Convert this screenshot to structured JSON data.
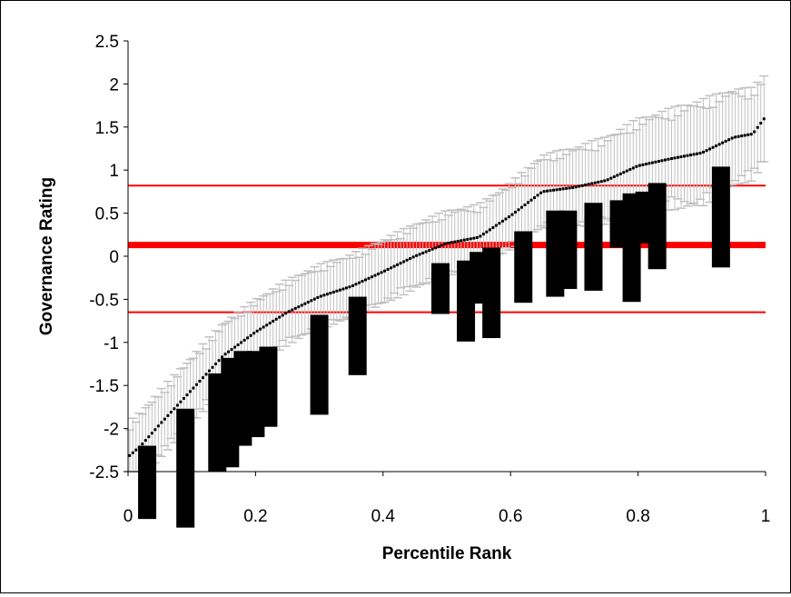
{
  "chart_data": {
    "type": "scatter",
    "title": "",
    "xlabel": "Percentile Rank",
    "ylabel": "Governance Rating",
    "xlim": [
      0,
      1
    ],
    "ylim": [
      -2.5,
      2.5
    ],
    "x_ticks": [
      "0",
      "0.2",
      "0.4",
      "0.6",
      "0.8",
      "1"
    ],
    "y_ticks": [
      "-2.5",
      "-2",
      "-1.5",
      "-1",
      "-0.5",
      "0",
      "0.5",
      "1",
      "1.5",
      "2",
      "2.5"
    ],
    "grid": false,
    "legend": "none",
    "colors": {
      "points": "#000000",
      "error_bars": "#c0c0c0",
      "reference_lines": "#ff0000",
      "bars": "#000000"
    },
    "reference_lines": [
      {
        "y": 0.82,
        "style": "thin"
      },
      {
        "y": 0.13,
        "style": "thick"
      },
      {
        "y": -0.65,
        "style": "thin"
      }
    ],
    "rating_curve": {
      "x_knots": [
        0,
        0.02,
        0.05,
        0.1,
        0.15,
        0.2,
        0.25,
        0.3,
        0.35,
        0.4,
        0.45,
        0.5,
        0.55,
        0.6,
        0.65,
        0.7,
        0.75,
        0.8,
        0.85,
        0.9,
        0.95,
        0.98,
        1.0
      ],
      "y_knots": [
        -2.33,
        -2.2,
        -1.95,
        -1.55,
        -1.15,
        -0.88,
        -0.65,
        -0.47,
        -0.35,
        -0.18,
        0.0,
        0.15,
        0.22,
        0.47,
        0.75,
        0.8,
        0.88,
        1.05,
        1.13,
        1.2,
        1.38,
        1.42,
        1.62
      ],
      "n_points": 200
    },
    "error_bar_halfwidth": {
      "x_knots": [
        0,
        0.3,
        0.6,
        0.75,
        0.9,
        1.0
      ],
      "halfwidth": [
        0.35,
        0.33,
        0.34,
        0.45,
        0.55,
        0.45
      ]
    },
    "range_bars": [
      {
        "x": 0.03,
        "low": -3.05,
        "high": -2.2
      },
      {
        "x": 0.09,
        "low": -3.15,
        "high": -1.77
      },
      {
        "x": 0.14,
        "low": -2.5,
        "high": -1.36
      },
      {
        "x": 0.16,
        "low": -2.45,
        "high": -1.18
      },
      {
        "x": 0.18,
        "low": -2.2,
        "high": -1.1
      },
      {
        "x": 0.2,
        "low": -2.1,
        "high": -1.1
      },
      {
        "x": 0.22,
        "low": -1.98,
        "high": -1.05
      },
      {
        "x": 0.3,
        "low": -1.84,
        "high": -0.68
      },
      {
        "x": 0.36,
        "low": -1.38,
        "high": -0.47
      },
      {
        "x": 0.49,
        "low": -0.67,
        "high": -0.08
      },
      {
        "x": 0.53,
        "low": -0.99,
        "high": -0.05
      },
      {
        "x": 0.55,
        "low": -0.55,
        "high": 0.05
      },
      {
        "x": 0.57,
        "low": -0.95,
        "high": 0.1
      },
      {
        "x": 0.62,
        "low": -0.54,
        "high": 0.29
      },
      {
        "x": 0.67,
        "low": -0.47,
        "high": 0.53
      },
      {
        "x": 0.69,
        "low": -0.38,
        "high": 0.53
      },
      {
        "x": 0.73,
        "low": -0.4,
        "high": 0.62
      },
      {
        "x": 0.77,
        "low": 0.1,
        "high": 0.65
      },
      {
        "x": 0.79,
        "low": -0.53,
        "high": 0.73
      },
      {
        "x": 0.81,
        "low": 0.15,
        "high": 0.75
      },
      {
        "x": 0.83,
        "low": -0.15,
        "high": 0.85
      },
      {
        "x": 0.93,
        "low": -0.13,
        "high": 1.04
      }
    ]
  }
}
